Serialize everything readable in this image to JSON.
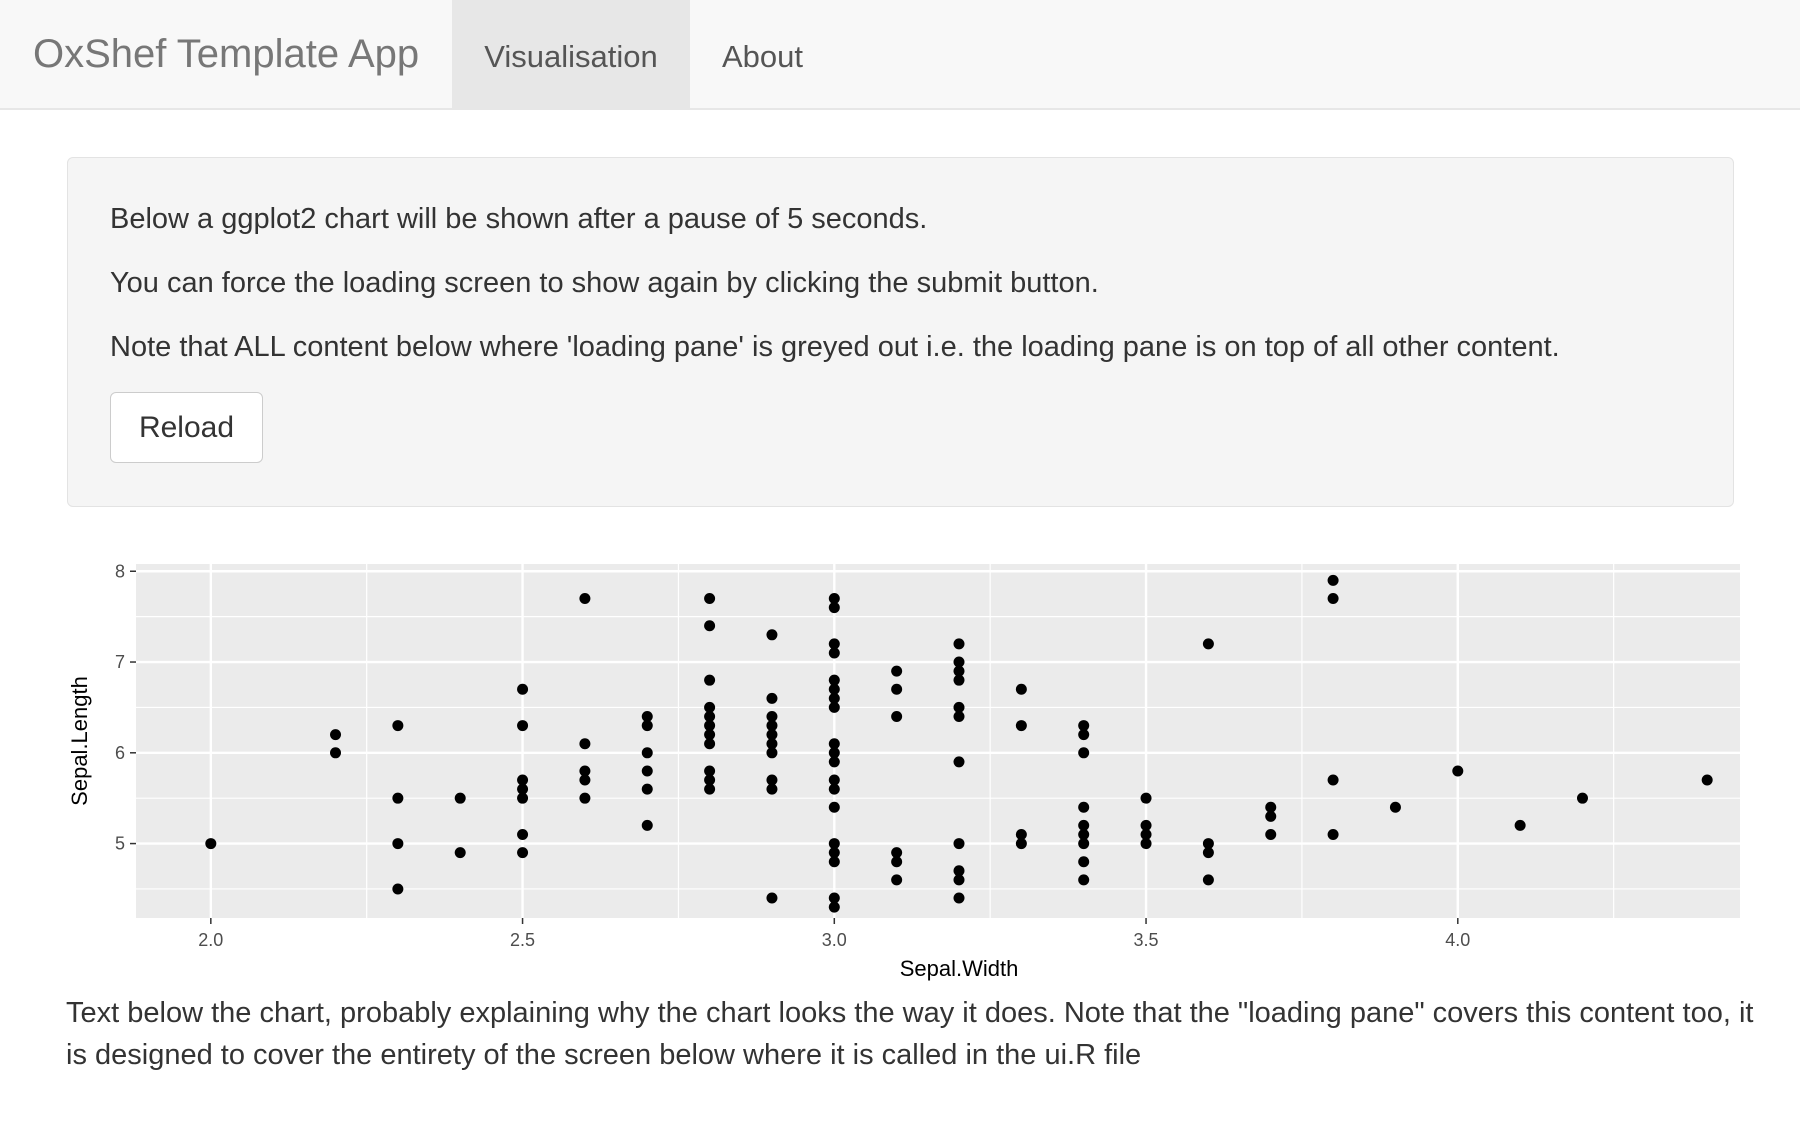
{
  "navbar": {
    "brand": "OxShef Template App",
    "tabs": [
      {
        "label": "Visualisation",
        "active": true
      },
      {
        "label": "About",
        "active": false
      }
    ]
  },
  "panel": {
    "paragraphs": [
      "Below a ggplot2 chart will be shown after a pause of 5 seconds.",
      "You can force the loading screen to show again by clicking the submit button.",
      "Note that ALL content below where 'loading pane' is greyed out i.e. the loading pane is on top of all other content."
    ],
    "reload_label": "Reload"
  },
  "chart_data": {
    "type": "scatter",
    "xlabel": "Sepal.Width",
    "ylabel": "Sepal.Length",
    "xlim": [
      1.88,
      4.52
    ],
    "ylim": [
      4.18,
      8.08
    ],
    "xticks": [
      "2.0",
      "2.5",
      "3.0",
      "3.5",
      "4.0",
      "4.5"
    ],
    "yticks": [
      "5",
      "6",
      "7",
      "8"
    ],
    "grid": true,
    "colors": {
      "panel": "#ebebeb",
      "grid": "#ffffff",
      "point": "#000000"
    },
    "points": [
      [
        2.0,
        5.0
      ],
      [
        2.2,
        6.2
      ],
      [
        2.2,
        6.0
      ],
      [
        2.3,
        6.3
      ],
      [
        2.3,
        5.5
      ],
      [
        2.3,
        5.0
      ],
      [
        2.3,
        4.5
      ],
      [
        2.4,
        5.5
      ],
      [
        2.4,
        4.9
      ],
      [
        2.5,
        6.7
      ],
      [
        2.5,
        6.3
      ],
      [
        2.5,
        5.7
      ],
      [
        2.5,
        5.6
      ],
      [
        2.5,
        5.5
      ],
      [
        2.5,
        5.1
      ],
      [
        2.5,
        4.9
      ],
      [
        2.6,
        7.7
      ],
      [
        2.6,
        6.1
      ],
      [
        2.6,
        5.8
      ],
      [
        2.6,
        5.7
      ],
      [
        2.6,
        5.5
      ],
      [
        2.7,
        6.4
      ],
      [
        2.7,
        6.3
      ],
      [
        2.7,
        6.0
      ],
      [
        2.7,
        5.8
      ],
      [
        2.7,
        5.6
      ],
      [
        2.7,
        5.2
      ],
      [
        2.8,
        7.7
      ],
      [
        2.8,
        7.4
      ],
      [
        2.8,
        6.8
      ],
      [
        2.8,
        6.5
      ],
      [
        2.8,
        6.4
      ],
      [
        2.8,
        6.3
      ],
      [
        2.8,
        6.2
      ],
      [
        2.8,
        6.1
      ],
      [
        2.8,
        5.8
      ],
      [
        2.8,
        5.7
      ],
      [
        2.8,
        5.6
      ],
      [
        2.9,
        7.3
      ],
      [
        2.9,
        6.6
      ],
      [
        2.9,
        6.4
      ],
      [
        2.9,
        6.3
      ],
      [
        2.9,
        6.2
      ],
      [
        2.9,
        6.1
      ],
      [
        2.9,
        6.0
      ],
      [
        2.9,
        5.7
      ],
      [
        2.9,
        5.6
      ],
      [
        2.9,
        4.4
      ],
      [
        3.0,
        7.7
      ],
      [
        3.0,
        7.6
      ],
      [
        3.0,
        7.2
      ],
      [
        3.0,
        7.1
      ],
      [
        3.0,
        6.8
      ],
      [
        3.0,
        6.7
      ],
      [
        3.0,
        6.6
      ],
      [
        3.0,
        6.5
      ],
      [
        3.0,
        6.1
      ],
      [
        3.0,
        6.0
      ],
      [
        3.0,
        5.9
      ],
      [
        3.0,
        5.7
      ],
      [
        3.0,
        5.6
      ],
      [
        3.0,
        5.4
      ],
      [
        3.0,
        5.0
      ],
      [
        3.0,
        4.9
      ],
      [
        3.0,
        4.8
      ],
      [
        3.0,
        4.4
      ],
      [
        3.0,
        4.3
      ],
      [
        3.1,
        6.9
      ],
      [
        3.1,
        6.7
      ],
      [
        3.1,
        6.4
      ],
      [
        3.1,
        4.9
      ],
      [
        3.1,
        4.8
      ],
      [
        3.1,
        4.6
      ],
      [
        3.2,
        7.2
      ],
      [
        3.2,
        7.0
      ],
      [
        3.2,
        6.9
      ],
      [
        3.2,
        6.8
      ],
      [
        3.2,
        6.5
      ],
      [
        3.2,
        6.4
      ],
      [
        3.2,
        5.9
      ],
      [
        3.2,
        5.0
      ],
      [
        3.2,
        4.7
      ],
      [
        3.2,
        4.6
      ],
      [
        3.2,
        4.4
      ],
      [
        3.3,
        6.7
      ],
      [
        3.3,
        6.3
      ],
      [
        3.3,
        5.1
      ],
      [
        3.3,
        5.0
      ],
      [
        3.4,
        6.3
      ],
      [
        3.4,
        6.2
      ],
      [
        3.4,
        6.0
      ],
      [
        3.4,
        5.4
      ],
      [
        3.4,
        5.2
      ],
      [
        3.4,
        5.1
      ],
      [
        3.4,
        5.0
      ],
      [
        3.4,
        4.8
      ],
      [
        3.4,
        4.6
      ],
      [
        3.5,
        5.5
      ],
      [
        3.5,
        5.2
      ],
      [
        3.5,
        5.1
      ],
      [
        3.5,
        5.0
      ],
      [
        3.6,
        7.2
      ],
      [
        3.6,
        5.0
      ],
      [
        3.6,
        4.9
      ],
      [
        3.6,
        4.6
      ],
      [
        3.7,
        5.4
      ],
      [
        3.7,
        5.3
      ],
      [
        3.7,
        5.1
      ],
      [
        3.8,
        7.9
      ],
      [
        3.8,
        7.7
      ],
      [
        3.8,
        5.7
      ],
      [
        3.8,
        5.1
      ],
      [
        3.9,
        5.4
      ],
      [
        4.0,
        5.8
      ],
      [
        4.1,
        5.2
      ],
      [
        4.2,
        5.5
      ],
      [
        4.4,
        5.7
      ]
    ]
  },
  "footer_text": "Text below the chart, probably explaining why the chart looks the way it does. Note that the \"loading pane\" covers this content too, it is designed to cover the entirety of the screen below where it is called in the ui.R file"
}
